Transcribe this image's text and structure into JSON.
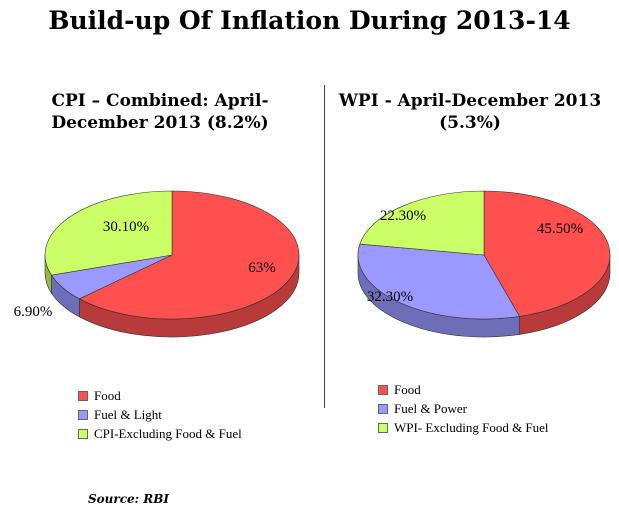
{
  "title": "Build-up Of Inflation During 2013-14",
  "source": "Source: RBI",
  "colors": {
    "food": "#ff5050",
    "fuel": "#9999ff",
    "excl": "#ccff66"
  },
  "chart_data": [
    {
      "type": "pie",
      "title": "CPI – Combined: April-December 2013 (8.2%)",
      "labels": [
        "Food",
        "Fuel & Light",
        "CPI-Excluding Food & Fuel"
      ],
      "values": [
        63,
        6.9,
        30.1
      ],
      "data_labels": [
        "63%",
        "6.90%",
        "30.10%"
      ],
      "legend_position": "bottom"
    },
    {
      "type": "pie",
      "title": "WPI - April-December 2013 (5.3%)",
      "labels": [
        "Food",
        "Fuel & Power",
        "WPI- Excluding Food & Fuel"
      ],
      "values": [
        45.5,
        32.3,
        22.3
      ],
      "data_labels": [
        "45.50%",
        "32.30%",
        "22.30%"
      ],
      "legend_position": "bottom"
    }
  ],
  "cpi_title_lines": [
    "CPI – Combined: April-",
    "December  2013   (8.2%)"
  ],
  "wpi_title_lines": [
    "WPI - April-December 2013",
    "(5.3%)"
  ]
}
